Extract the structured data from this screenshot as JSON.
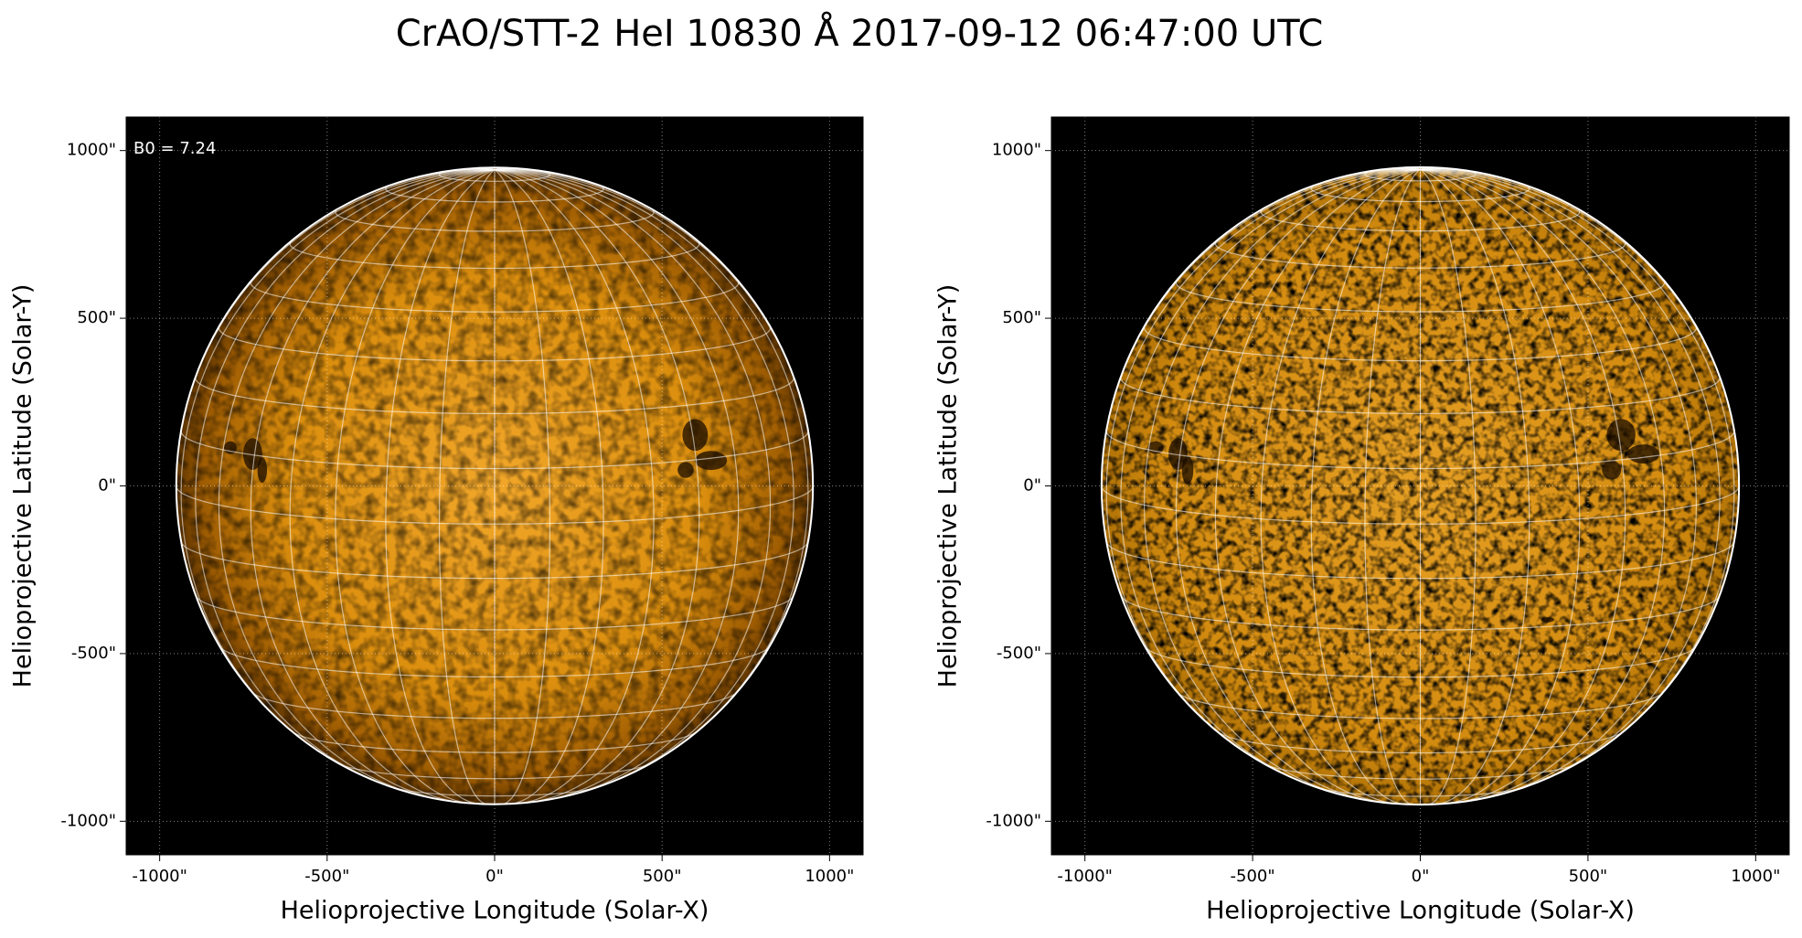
{
  "title": "CrAO/STT-2 HeI 10830 Å 2017-09-12 06:47:00 UTC",
  "chart_data": [
    {
      "type": "image",
      "annotation": "B0 = 7.24",
      "xlabel": "Helioprojective Longitude (Solar-X)",
      "ylabel": "Helioprojective Latitude (Solar-Y)",
      "xlim": [
        -1100,
        1100
      ],
      "ylim": [
        -1100,
        1100
      ],
      "xticks": [
        {
          "value": -1000,
          "label": "-1000\""
        },
        {
          "value": -500,
          "label": "-500\""
        },
        {
          "value": 0,
          "label": "0\""
        },
        {
          "value": 500,
          "label": "500\""
        },
        {
          "value": 1000,
          "label": "1000\""
        }
      ],
      "yticks": [
        {
          "value": -1000,
          "label": "-1000\""
        },
        {
          "value": -500,
          "label": "-500\""
        },
        {
          "value": 0,
          "label": "0\""
        },
        {
          "value": 500,
          "label": "500\""
        },
        {
          "value": 1000,
          "label": "1000\""
        }
      ],
      "grid": true
    },
    {
      "type": "image",
      "xlabel": "Helioprojective Longitude (Solar-X)",
      "ylabel": "Helioprojective Latitude (Solar-Y)",
      "xlim": [
        -1100,
        1100
      ],
      "ylim": [
        -1100,
        1100
      ],
      "xticks": [
        {
          "value": -1000,
          "label": "-1000\""
        },
        {
          "value": -500,
          "label": "-500\""
        },
        {
          "value": 0,
          "label": "0\""
        },
        {
          "value": 500,
          "label": "500\""
        },
        {
          "value": 1000,
          "label": "1000\""
        }
      ],
      "yticks": [
        {
          "value": -1000,
          "label": "-1000\""
        },
        {
          "value": -500,
          "label": "-500\""
        },
        {
          "value": 0,
          "label": "0\""
        },
        {
          "value": 500,
          "label": "500\""
        },
        {
          "value": 1000,
          "label": "1000\""
        }
      ],
      "grid": true
    }
  ]
}
